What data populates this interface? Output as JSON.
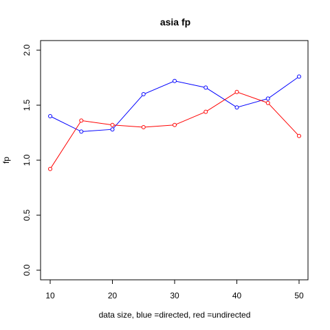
{
  "chart_data": {
    "type": "line",
    "title": "asia fp",
    "xlabel": "data size,  blue =directed,  red =undirected",
    "ylabel": "fp",
    "x": [
      10,
      15,
      20,
      25,
      30,
      35,
      40,
      45,
      50
    ],
    "xlim": [
      10,
      50
    ],
    "ylim": [
      0.0,
      2.0
    ],
    "x_ticks": [
      10,
      20,
      30,
      40,
      50
    ],
    "y_ticks": [
      0.0,
      0.5,
      1.0,
      1.5,
      2.0
    ],
    "x_tick_labels": [
      "10",
      "20",
      "30",
      "40",
      "50"
    ],
    "y_tick_labels": [
      "0.0",
      "0.5",
      "1.0",
      "1.5",
      "2.0"
    ],
    "grid": false,
    "series": [
      {
        "color": "#0000ff",
        "marker": "open-circle",
        "values": [
          1.4,
          1.26,
          1.28,
          1.6,
          1.72,
          1.66,
          1.48,
          1.56,
          1.76
        ]
      },
      {
        "color": "#ff0000",
        "marker": "open-circle",
        "values": [
          0.92,
          1.36,
          1.32,
          1.3,
          1.32,
          1.44,
          1.62,
          1.52,
          1.22
        ]
      }
    ]
  }
}
